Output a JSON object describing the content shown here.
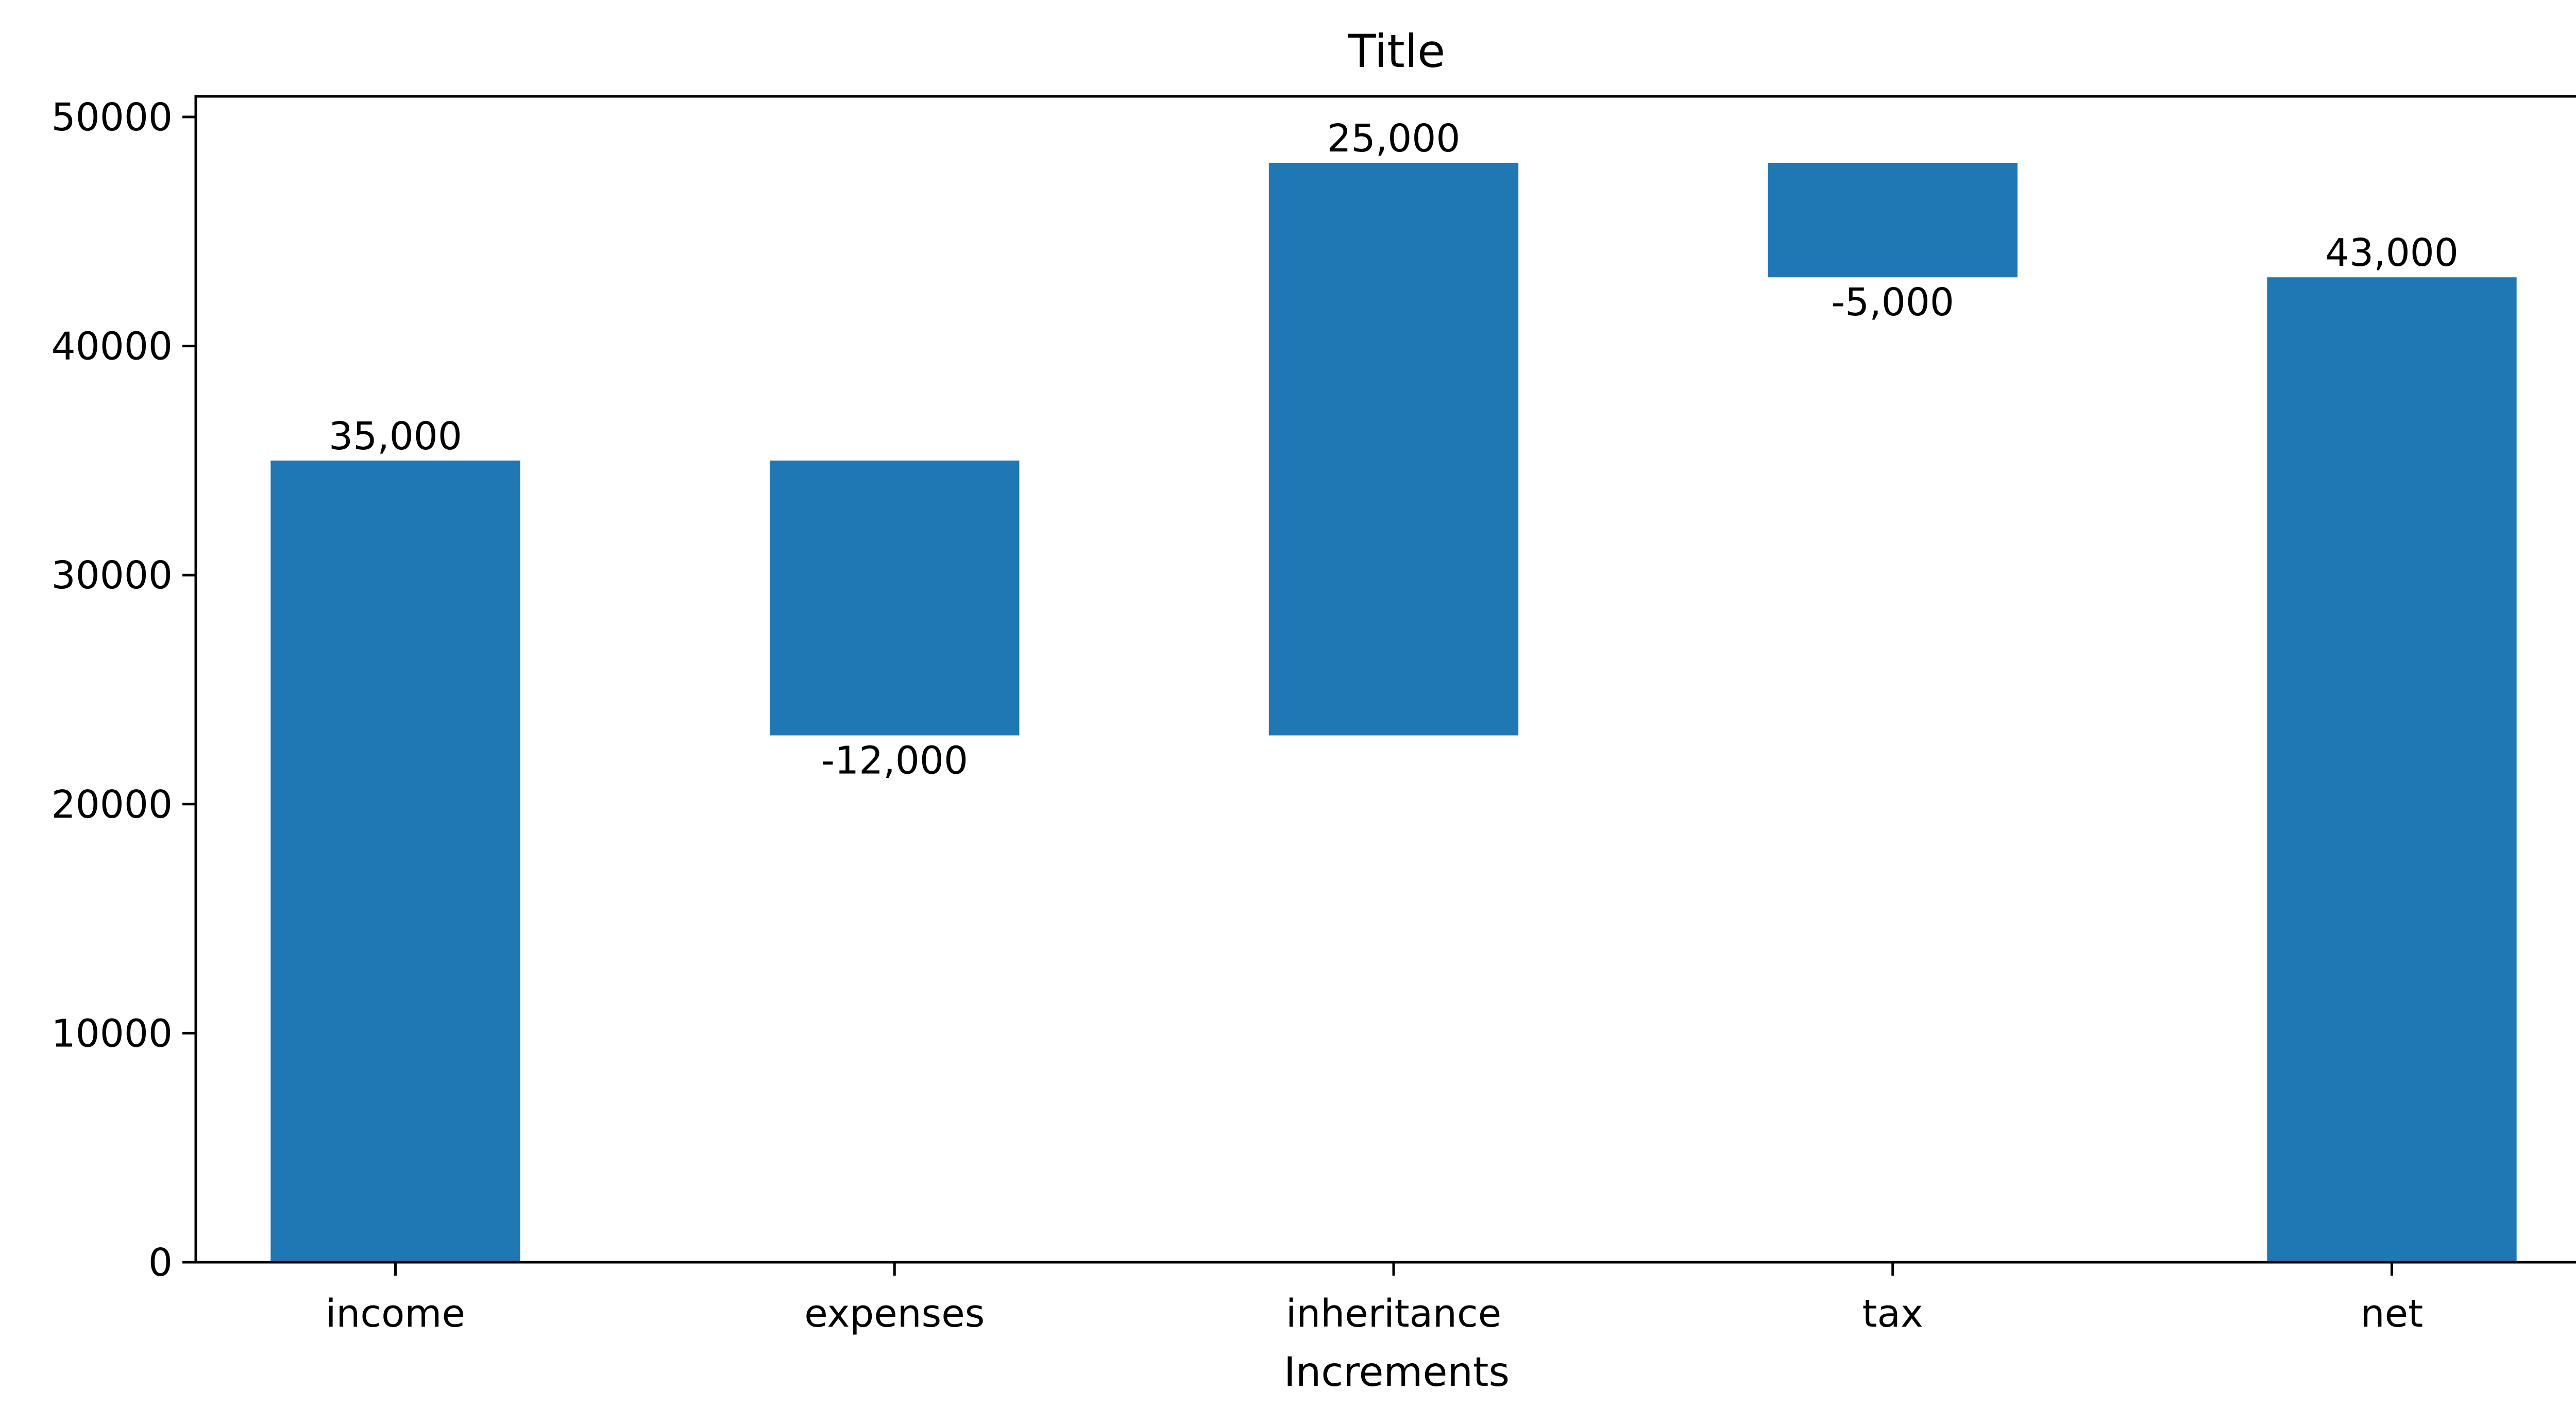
{
  "chart_data": {
    "type": "bar",
    "subtype": "waterfall",
    "title": "Title",
    "xlabel": "Increments",
    "ylabel": "",
    "categories": [
      "income",
      "expenses",
      "inheritance",
      "tax",
      "net"
    ],
    "values": [
      35000,
      -12000,
      25000,
      -5000,
      43000
    ],
    "bar_bottoms": [
      0,
      23000,
      23000,
      43000,
      0
    ],
    "bar_tops": [
      35000,
      35000,
      48000,
      48000,
      43000
    ],
    "data_labels": [
      "35,000",
      "-12,000",
      "25,000",
      "-5,000",
      "43,000"
    ],
    "yticks": [
      0,
      10000,
      20000,
      30000,
      40000,
      50000
    ],
    "ytick_labels": [
      "0",
      "10000",
      "20000",
      "30000",
      "40000",
      "50000"
    ],
    "ylim": [
      0,
      50900
    ],
    "grid": false,
    "legend": "none",
    "bar_color": "#1f77b4"
  }
}
